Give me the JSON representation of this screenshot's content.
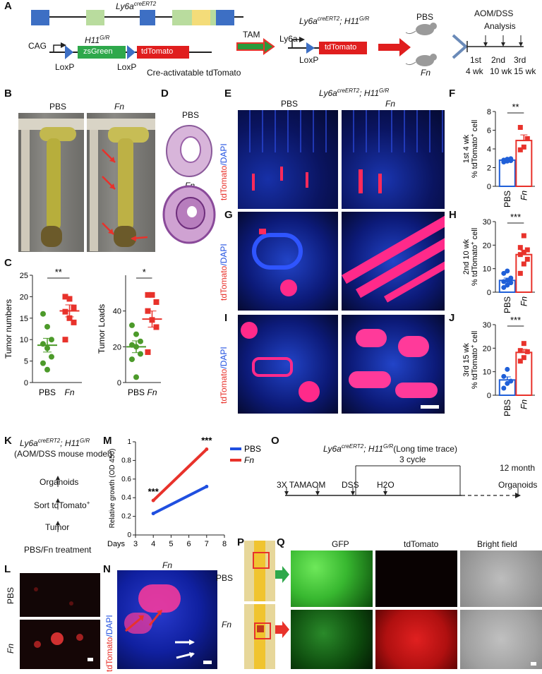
{
  "panels": {
    "A": {
      "letter": "A",
      "gene1": "Ly6a",
      "gene1_sup": "creERT2",
      "gene2": "H11",
      "gene2_sup": "G/R",
      "cag": "CAG",
      "zsgreen": "zsGreen",
      "tdtomato": "tdTomato",
      "loxp1": "LoxP",
      "loxp2": "LoxP",
      "cre_label": "Cre-activatable tdTomato",
      "tam": "TAM",
      "cross_title_a": "Ly6a",
      "cross_title_a_sup": "creERT2",
      "cross_title_sep": "; ",
      "cross_title_b": "H11",
      "cross_title_b_sup": "G/R",
      "ly6a_small": "Ly6a",
      "loxp3": "LoxP",
      "tdtomato2": "tdTomato",
      "pbs": "PBS",
      "fn": "Fn",
      "aomdss": "AOM/DSS",
      "analysis": "Analysis",
      "timepoints": [
        {
          "ord": "1st",
          "wk": "4 wk"
        },
        {
          "ord": "2nd",
          "wk": "10 wk"
        },
        {
          "ord": "3rd",
          "wk": "15 wk"
        }
      ]
    },
    "B": {
      "letter": "B",
      "pbs": "PBS",
      "fn": "Fn"
    },
    "C": {
      "letter": "C"
    },
    "D": {
      "letter": "D",
      "pbs": "PBS",
      "fn": "Fn"
    },
    "E": {
      "letter": "E",
      "title": "Ly6a",
      "title_sup": "creERT2",
      "title_sep": "; ",
      "title_b": "H11",
      "title_b_sup": "G/R",
      "pbs": "PBS",
      "fn": "Fn",
      "ylab_red": "tdTomato",
      "ylab_blue": "/DAPI"
    },
    "F": {
      "letter": "F"
    },
    "G": {
      "letter": "G",
      "ylab_red": "tdTomato",
      "ylab_blue": "/DAPI"
    },
    "H": {
      "letter": "H"
    },
    "I": {
      "letter": "I",
      "ylab_red": "tdTomato",
      "ylab_blue": "/DAPI"
    },
    "J": {
      "letter": "J"
    },
    "K": {
      "letter": "K",
      "title": "Ly6a",
      "title_sup": "creERT2",
      "title_sep": "; ",
      "title_b": "H11",
      "title_b_sup": "G/R",
      "subtitle": "(AOM/DSS mouse model)",
      "steps": [
        "Organoids",
        "Sort tdTomato",
        "Tumor",
        "PBS/Fn treatment"
      ],
      "sort_sup": "+"
    },
    "L": {
      "letter": "L",
      "pbs": "PBS",
      "fn": "Fn"
    },
    "M": {
      "letter": "M"
    },
    "N": {
      "letter": "N",
      "title": "Fn",
      "ylab_red": "tdTomato",
      "ylab_blue": "/DAPI"
    },
    "O": {
      "letter": "O",
      "title": "Ly6a",
      "title_sup": "creERT2",
      "title_sep": "; ",
      "title_b": "H11",
      "title_b_sup": "G/R",
      "title_tail": "(Long time trace)",
      "cycle": "3 cycle",
      "month": "12 month",
      "events": [
        "3X TAM",
        "AOM",
        "DSS",
        "H2O",
        "Organoids"
      ]
    },
    "P": {
      "letter": "P",
      "pbs": "PBS",
      "fn": "Fn"
    },
    "Q": {
      "letter": "Q",
      "cols": [
        "GFP",
        "tdTomato",
        "Bright field"
      ]
    }
  },
  "colors": {
    "green": "#4c9a2a",
    "red": "#e8322b",
    "blue": "#1f4fe0",
    "pbs_blue": "#1f5fd8"
  },
  "chart_data": [
    {
      "id": "C-left",
      "type": "scatter",
      "categories": [
        "PBS",
        "Fn"
      ],
      "ylabel": "Tumor numbers",
      "ylim": [
        0,
        25
      ],
      "yticks": [
        0,
        5,
        10,
        15,
        20,
        25
      ],
      "significance": "**",
      "series": [
        {
          "name": "PBS",
          "points": [
            16,
            13,
            10,
            9,
            8,
            6,
            4.5,
            3
          ],
          "mean": 8.7,
          "sem": 1.6
        },
        {
          "name": "Fn",
          "points": [
            20,
            19.5,
            17.5,
            16.5,
            15,
            14,
            10
          ],
          "mean": 16.7,
          "sem": 1.4
        }
      ]
    },
    {
      "id": "C-right",
      "type": "scatter",
      "categories": [
        "PBS",
        "Fn"
      ],
      "ylabel": "Tumor Loads",
      "ylim": [
        0,
        60
      ],
      "yticks": [
        0,
        20,
        40
      ],
      "significance": "*",
      "series": [
        {
          "name": "PBS",
          "points": [
            32,
            27,
            23,
            21,
            20,
            16,
            13,
            3
          ],
          "mean": 20,
          "sem": 3.3
        },
        {
          "name": "Fn",
          "points": [
            49,
            49,
            45,
            40,
            35,
            31,
            17
          ],
          "mean": 35.5,
          "sem": 4.5
        }
      ]
    },
    {
      "id": "F",
      "type": "bar",
      "categories": [
        "PBS",
        "Fn"
      ],
      "ylabel": "% tdTomato",
      "ylabel_sup": "+",
      "ylabel_tail": " cell",
      "group": "1st 4 wk",
      "ylim": [
        0,
        8
      ],
      "yticks": [
        0,
        2,
        4,
        6,
        8
      ],
      "significance": "**",
      "values": [
        2.8,
        4.9
      ],
      "sem": [
        0.15,
        0.6
      ],
      "points": [
        [
          2.6,
          2.7,
          2.75,
          2.8,
          2.9,
          2.95
        ],
        [
          3.9,
          4.2,
          5.1,
          6.3
        ]
      ]
    },
    {
      "id": "H",
      "type": "bar",
      "categories": [
        "PBS",
        "Fn"
      ],
      "ylabel": "% tdTomato",
      "ylabel_sup": "+",
      "ylabel_tail": " cell",
      "group": "2nd 10 wk",
      "ylim": [
        0,
        30
      ],
      "yticks": [
        0,
        10,
        20,
        30
      ],
      "significance": "***",
      "values": [
        5,
        16
      ],
      "sem": [
        1,
        1.8
      ],
      "points": [
        [
          2,
          3,
          4,
          4.5,
          5,
          6,
          8,
          9
        ],
        [
          8,
          12,
          14,
          16,
          17,
          18,
          19,
          24
        ]
      ]
    },
    {
      "id": "J",
      "type": "bar",
      "categories": [
        "PBS",
        "Fn"
      ],
      "ylabel": "% tdTomato",
      "ylabel_sup": "+",
      "ylabel_tail": " cell",
      "group": "3rd 15 wk",
      "ylim": [
        0,
        30
      ],
      "yticks": [
        0,
        10,
        20,
        30
      ],
      "significance": "***",
      "values": [
        6.5,
        18.2
      ],
      "sem": [
        1.3,
        1.3
      ],
      "points": [
        [
          3,
          5,
          6,
          8,
          11
        ],
        [
          14.5,
          16,
          18.5,
          19,
          22
        ]
      ]
    },
    {
      "id": "M",
      "type": "line",
      "xlabel": "Days",
      "ylabel": "Relative growth (OD 450)",
      "xlim": [
        3,
        8
      ],
      "xticks": [
        3,
        4,
        5,
        6,
        7,
        8
      ],
      "ylim": [
        0,
        1
      ],
      "yticks": [
        0,
        0.2,
        0.4,
        0.6,
        0.8,
        1
      ],
      "annotations": [
        {
          "x": 4,
          "text": "***"
        },
        {
          "x": 7,
          "text": "***"
        }
      ],
      "series": [
        {
          "name": "PBS",
          "x": [
            4,
            7
          ],
          "y": [
            0.23,
            0.52
          ]
        },
        {
          "name": "Fn",
          "x": [
            4,
            7
          ],
          "y": [
            0.37,
            0.92
          ]
        }
      ]
    }
  ]
}
